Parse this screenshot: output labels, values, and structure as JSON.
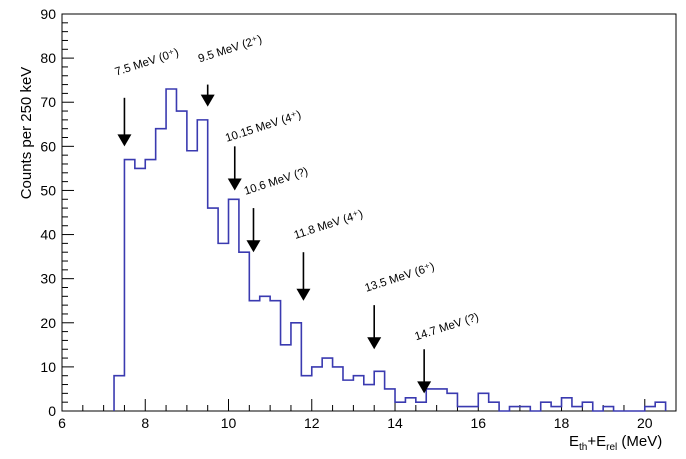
{
  "chart_data": {
    "type": "bar",
    "style": "step-histogram",
    "xlim": [
      6,
      20.75
    ],
    "ylim": [
      0,
      90
    ],
    "bin_width": 0.25,
    "x_ticks": [
      6,
      8,
      10,
      12,
      14,
      16,
      18,
      20
    ],
    "y_ticks": [
      0,
      10,
      20,
      30,
      40,
      50,
      60,
      70,
      80,
      90
    ],
    "ylabel": "Counts per 250 keV",
    "xlabel": {
      "base1": "E",
      "sub1": "th",
      "mid": "+E",
      "sub2": "rel",
      "tail": " (MeV)"
    },
    "grid": false,
    "colors": {
      "line": "#3a3ab0",
      "axis": "#000000",
      "arrow": "#000000"
    },
    "bins": [
      [
        7.25,
        8
      ],
      [
        7.5,
        57
      ],
      [
        7.75,
        55
      ],
      [
        8.0,
        57
      ],
      [
        8.25,
        64
      ],
      [
        8.5,
        73
      ],
      [
        8.75,
        68
      ],
      [
        9.0,
        59
      ],
      [
        9.25,
        66
      ],
      [
        9.5,
        46
      ],
      [
        9.75,
        38
      ],
      [
        10.0,
        48
      ],
      [
        10.25,
        36
      ],
      [
        10.5,
        25
      ],
      [
        10.75,
        26
      ],
      [
        11.0,
        25
      ],
      [
        11.25,
        15
      ],
      [
        11.5,
        20
      ],
      [
        11.75,
        8
      ],
      [
        12.0,
        10
      ],
      [
        12.25,
        12
      ],
      [
        12.5,
        10
      ],
      [
        12.75,
        7
      ],
      [
        13.0,
        8
      ],
      [
        13.25,
        6
      ],
      [
        13.5,
        9
      ],
      [
        13.75,
        5
      ],
      [
        14.0,
        2
      ],
      [
        14.25,
        3
      ],
      [
        14.5,
        2
      ],
      [
        14.75,
        5
      ],
      [
        15.0,
        5
      ],
      [
        15.25,
        4
      ],
      [
        15.5,
        1
      ],
      [
        15.75,
        1
      ],
      [
        16.0,
        4
      ],
      [
        16.25,
        2
      ],
      [
        16.5,
        0
      ],
      [
        16.75,
        1
      ],
      [
        17.0,
        1
      ],
      [
        17.25,
        0
      ],
      [
        17.5,
        2
      ],
      [
        17.75,
        1
      ],
      [
        18.0,
        3
      ],
      [
        18.25,
        1
      ],
      [
        18.5,
        2
      ],
      [
        18.75,
        0
      ],
      [
        19.0,
        1
      ],
      [
        19.25,
        0
      ],
      [
        19.5,
        0
      ],
      [
        19.75,
        0
      ],
      [
        20.0,
        1
      ],
      [
        20.25,
        2
      ]
    ],
    "annotations": [
      {
        "label": "7.5 MeV (0⁺)",
        "x": 7.5,
        "label_y": 76,
        "arrow_top": 71,
        "arrow_tip": 60
      },
      {
        "label": "9.5 MeV (2⁺)",
        "x": 9.5,
        "label_y": 79,
        "arrow_top": 74,
        "arrow_tip": 69
      },
      {
        "label": "10.15 MeV (4⁺)",
        "x": 10.15,
        "label_y": 61,
        "arrow_top": 60,
        "arrow_tip": 50
      },
      {
        "label": "10.6 MeV (?)",
        "x": 10.6,
        "label_y": 49,
        "arrow_top": 46,
        "arrow_tip": 36
      },
      {
        "label": "11.8 MeV (4⁺)",
        "x": 11.8,
        "label_y": 39,
        "arrow_top": 36,
        "arrow_tip": 25
      },
      {
        "label": "13.5 MeV (6⁺)",
        "x": 13.5,
        "label_y": 27,
        "arrow_top": 24,
        "arrow_tip": 14
      },
      {
        "label": "14.7 MeV (?)",
        "x": 14.7,
        "label_y": 16,
        "arrow_top": 14,
        "arrow_tip": 4
      }
    ]
  }
}
